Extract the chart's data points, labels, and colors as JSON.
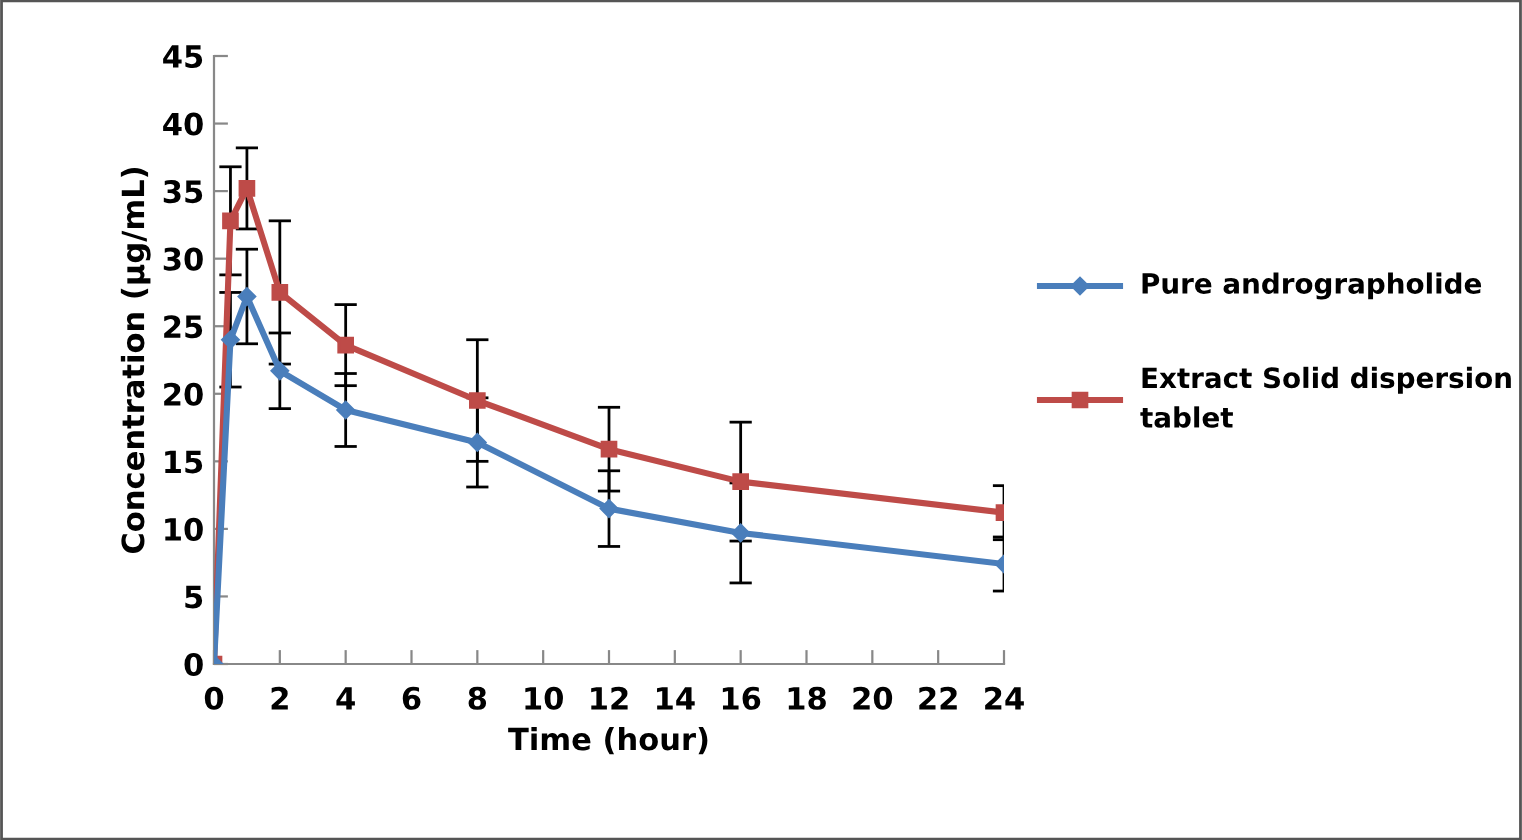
{
  "chart_data": {
    "type": "line",
    "xlabel": "Time (hour)",
    "ylabel": "Concentration (µg/mL)",
    "x": [
      0,
      0.5,
      1,
      2,
      4,
      8,
      12,
      16,
      24
    ],
    "series": [
      {
        "name": "Pure andrographolide",
        "color": "#4a7ebb",
        "marker": "diamond",
        "values": [
          0,
          24,
          27.2,
          21.7,
          18.8,
          16.4,
          11.5,
          9.7,
          7.4
        ],
        "errors": [
          null,
          3.5,
          3.5,
          2.8,
          2.7,
          3.3,
          2.8,
          3.7,
          2
        ]
      },
      {
        "name": "Extract Solid dispersion tablet",
        "color": "#be4b48",
        "marker": "square",
        "values": [
          0,
          32.8,
          35.2,
          27.5,
          23.6,
          19.5,
          15.9,
          13.5,
          11.2
        ],
        "errors": [
          null,
          4,
          3,
          5.3,
          3,
          4.5,
          3.1,
          4.4,
          2
        ]
      }
    ],
    "xlim": [
      0,
      24
    ],
    "xticks": [
      0,
      2,
      4,
      6,
      8,
      10,
      12,
      14,
      16,
      18,
      20,
      22,
      24
    ],
    "ylim": [
      0,
      45
    ],
    "yticks": [
      0,
      5,
      10,
      15,
      20,
      25,
      30,
      35,
      40,
      45
    ],
    "grid": false,
    "legend": "right",
    "line_style": "solid"
  }
}
